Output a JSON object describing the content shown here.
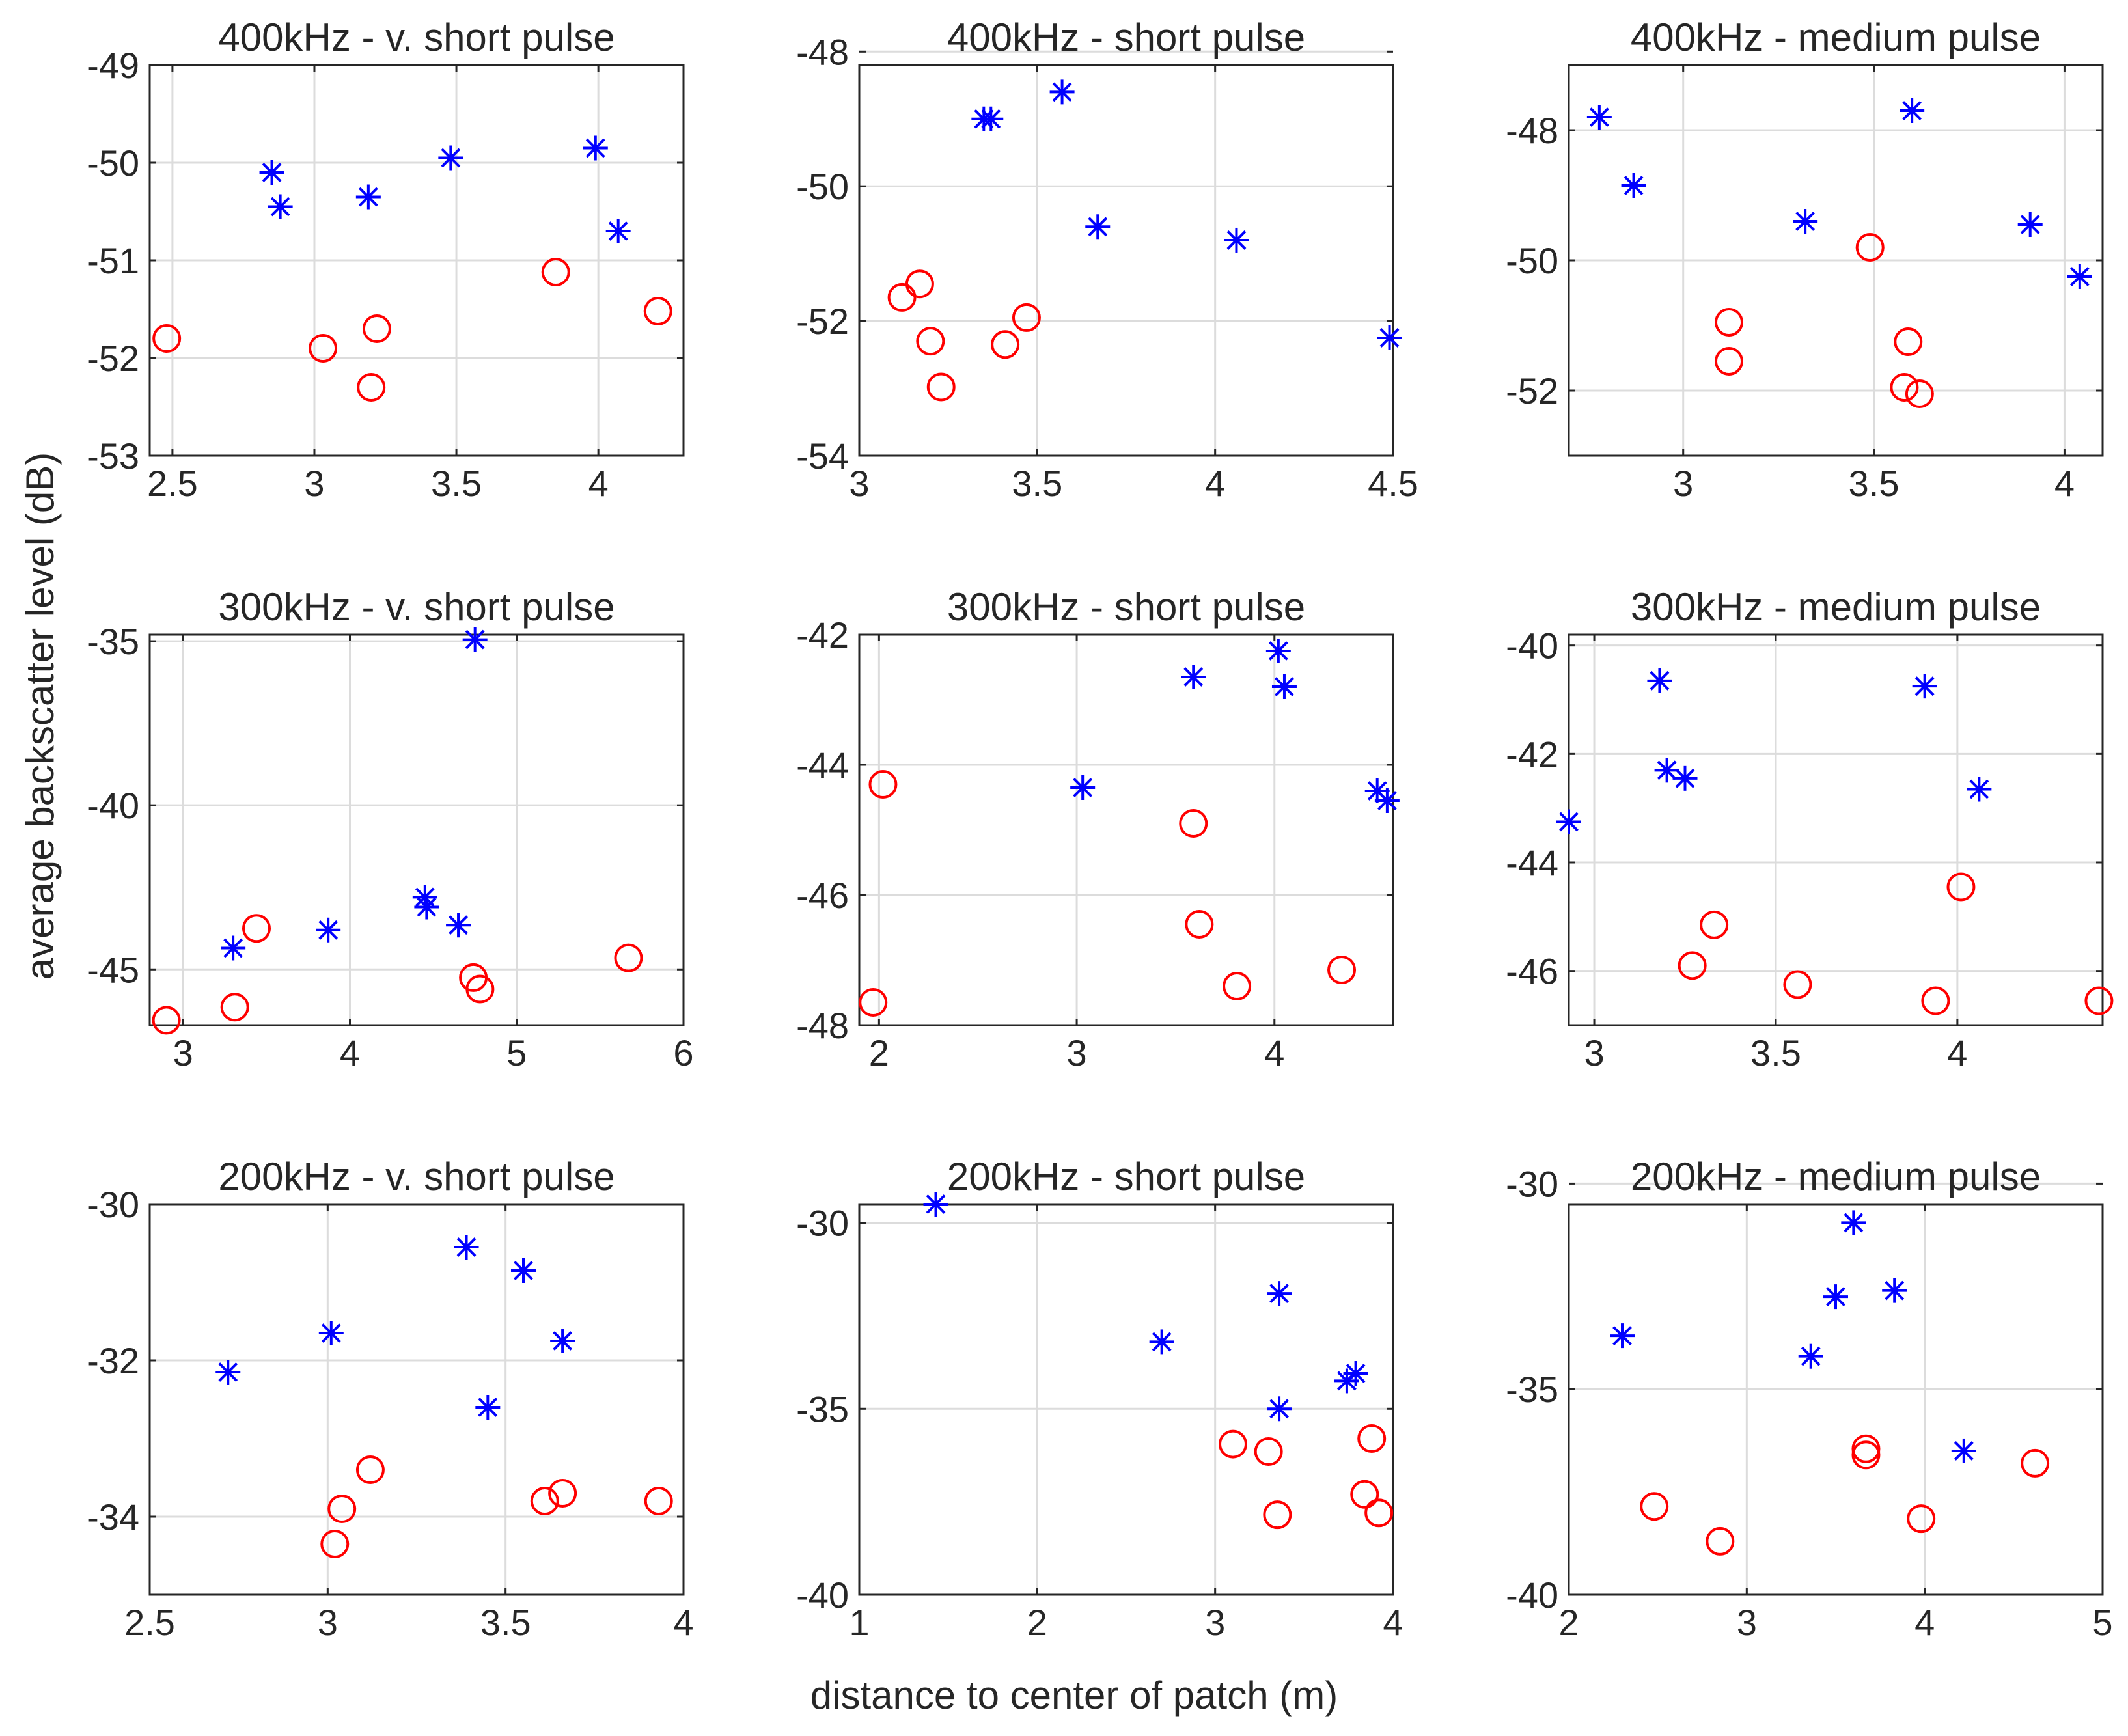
{
  "figure": {
    "xlabel": "distance to center of patch (m)",
    "ylabel": "average backscatter level (dB)"
  },
  "colors": {
    "series_a": "#0000ff",
    "series_b": "#ff0000",
    "text": "#262626",
    "grid": "#dcdcdc"
  },
  "chart_data": [
    {
      "type": "scatter",
      "title": "400kHz - v. short pulse",
      "xlim": [
        2.42,
        4.3
      ],
      "ylim": [
        -53,
        -49
      ],
      "xticks": [
        2.5,
        3,
        3.5,
        4
      ],
      "xtick_labels": [
        "2.5",
        "3",
        "3.5",
        "4"
      ],
      "yticks": [
        -53,
        -52,
        -51,
        -50,
        -49
      ],
      "ytick_labels": [
        "-53",
        "-52",
        "-51",
        "-50",
        "-49"
      ],
      "series": [
        {
          "name": "asterisk",
          "marker": "star",
          "points": [
            [
              2.85,
              -50.1
            ],
            [
              2.88,
              -50.45
            ],
            [
              3.19,
              -50.35
            ],
            [
              3.48,
              -49.95
            ],
            [
              3.99,
              -49.85
            ],
            [
              4.07,
              -50.7
            ]
          ]
        },
        {
          "name": "circle",
          "marker": "circle",
          "points": [
            [
              2.48,
              -51.8
            ],
            [
              3.03,
              -51.9
            ],
            [
              3.2,
              -52.3
            ],
            [
              3.22,
              -51.7
            ],
            [
              3.85,
              -51.12
            ],
            [
              4.21,
              -51.52
            ]
          ]
        }
      ]
    },
    {
      "type": "scatter",
      "title": "400kHz - short pulse",
      "xlim": [
        3.0,
        4.5
      ],
      "ylim": [
        -54,
        -48.2
      ],
      "xticks": [
        3,
        3.5,
        4,
        4.5
      ],
      "xtick_labels": [
        "3",
        "3.5",
        "4",
        "4.5"
      ],
      "yticks": [
        -54,
        -52,
        -50,
        -48
      ],
      "ytick_labels": [
        "-54",
        "-52",
        "-50",
        "-48"
      ],
      "series": [
        {
          "name": "asterisk",
          "marker": "star",
          "points": [
            [
              3.35,
              -49.0
            ],
            [
              3.37,
              -49.0
            ],
            [
              3.57,
              -48.6
            ],
            [
              3.67,
              -50.6
            ],
            [
              4.06,
              -50.8
            ],
            [
              4.49,
              -52.25
            ]
          ]
        },
        {
          "name": "circle",
          "marker": "circle",
          "points": [
            [
              3.12,
              -51.65
            ],
            [
              3.17,
              -51.45
            ],
            [
              3.2,
              -52.3
            ],
            [
              3.23,
              -52.98
            ],
            [
              3.41,
              -52.35
            ],
            [
              3.47,
              -51.95
            ]
          ]
        }
      ]
    },
    {
      "type": "scatter",
      "title": "400kHz - medium pulse",
      "xlim": [
        2.7,
        4.1
      ],
      "ylim": [
        -53,
        -47
      ],
      "xticks": [
        3,
        3.5,
        4
      ],
      "xtick_labels": [
        "3",
        "3.5",
        "4"
      ],
      "yticks": [
        -52,
        -50,
        -48
      ],
      "ytick_labels": [
        "-52",
        "-50",
        "-48"
      ],
      "series": [
        {
          "name": "asterisk",
          "marker": "star",
          "points": [
            [
              2.78,
              -47.8
            ],
            [
              2.87,
              -48.85
            ],
            [
              3.32,
              -49.4
            ],
            [
              3.6,
              -47.7
            ],
            [
              3.91,
              -49.45
            ],
            [
              4.04,
              -50.25
            ]
          ]
        },
        {
          "name": "circle",
          "marker": "circle",
          "points": [
            [
              3.12,
              -50.95
            ],
            [
              3.12,
              -51.55
            ],
            [
              3.49,
              -49.8
            ],
            [
              3.58,
              -51.95
            ],
            [
              3.59,
              -51.25
            ],
            [
              3.62,
              -52.05
            ]
          ]
        }
      ]
    },
    {
      "type": "scatter",
      "title": "300kHz - v. short pulse",
      "xlim": [
        2.8,
        6.0
      ],
      "ylim": [
        -46.7,
        -34.8
      ],
      "xticks": [
        3,
        4,
        5,
        6
      ],
      "xtick_labels": [
        "3",
        "4",
        "5",
        "6"
      ],
      "yticks": [
        -45,
        -40,
        -35
      ],
      "ytick_labels": [
        "-45",
        "-40",
        "-35"
      ],
      "series": [
        {
          "name": "asterisk",
          "marker": "star",
          "points": [
            [
              3.3,
              -44.35
            ],
            [
              3.87,
              -43.8
            ],
            [
              4.45,
              -42.8
            ],
            [
              4.46,
              -43.1
            ],
            [
              4.65,
              -43.65
            ],
            [
              4.75,
              -34.95
            ]
          ]
        },
        {
          "name": "circle",
          "marker": "circle",
          "points": [
            [
              2.9,
              -46.55
            ],
            [
              3.31,
              -46.15
            ],
            [
              3.44,
              -43.75
            ],
            [
              4.74,
              -45.25
            ],
            [
              4.78,
              -45.6
            ],
            [
              5.67,
              -44.65
            ]
          ]
        }
      ]
    },
    {
      "type": "scatter",
      "title": "300kHz - short pulse",
      "xlim": [
        1.9,
        4.6
      ],
      "ylim": [
        -48,
        -42
      ],
      "xticks": [
        2,
        3,
        4
      ],
      "xtick_labels": [
        "2",
        "3",
        "4"
      ],
      "yticks": [
        -48,
        -46,
        -44,
        -42
      ],
      "ytick_labels": [
        "-48",
        "-46",
        "-44",
        "-42"
      ],
      "series": [
        {
          "name": "asterisk",
          "marker": "star",
          "points": [
            [
              3.03,
              -44.35
            ],
            [
              3.59,
              -42.65
            ],
            [
              4.02,
              -42.25
            ],
            [
              4.05,
              -42.8
            ],
            [
              4.52,
              -44.4
            ],
            [
              4.57,
              -44.55
            ]
          ]
        },
        {
          "name": "circle",
          "marker": "circle",
          "points": [
            [
              1.97,
              -47.65
            ],
            [
              2.02,
              -44.3
            ],
            [
              3.59,
              -44.9
            ],
            [
              3.62,
              -46.45
            ],
            [
              3.81,
              -47.4
            ],
            [
              4.34,
              -47.15
            ]
          ]
        }
      ]
    },
    {
      "type": "scatter",
      "title": "300kHz - medium pulse",
      "xlim": [
        2.93,
        4.4
      ],
      "ylim": [
        -47,
        -39.8
      ],
      "xticks": [
        3,
        3.5,
        4
      ],
      "xtick_labels": [
        "3",
        "3.5",
        "4"
      ],
      "yticks": [
        -46,
        -44,
        -42,
        -40
      ],
      "ytick_labels": [
        "-46",
        "-44",
        "-42",
        "-40"
      ],
      "series": [
        {
          "name": "asterisk",
          "marker": "star",
          "points": [
            [
              2.93,
              -43.25
            ],
            [
              3.18,
              -40.65
            ],
            [
              3.2,
              -42.3
            ],
            [
              3.25,
              -42.45
            ],
            [
              3.91,
              -40.75
            ],
            [
              4.06,
              -42.65
            ]
          ]
        },
        {
          "name": "circle",
          "marker": "circle",
          "points": [
            [
              3.27,
              -45.9
            ],
            [
              3.33,
              -45.15
            ],
            [
              3.56,
              -46.25
            ],
            [
              3.94,
              -46.55
            ],
            [
              4.01,
              -44.45
            ],
            [
              4.39,
              -46.55
            ]
          ]
        }
      ]
    },
    {
      "type": "scatter",
      "title": "200kHz - v. short pulse",
      "xlim": [
        2.5,
        4.0
      ],
      "ylim": [
        -35,
        -30
      ],
      "xticks": [
        2.5,
        3,
        3.5,
        4
      ],
      "xtick_labels": [
        "2.5",
        "3",
        "3.5",
        "4"
      ],
      "yticks": [
        -34,
        -32,
        -30
      ],
      "ytick_labels": [
        "-34",
        "-32",
        "-30"
      ],
      "series": [
        {
          "name": "asterisk",
          "marker": "star",
          "points": [
            [
              2.72,
              -32.15
            ],
            [
              3.01,
              -31.65
            ],
            [
              3.39,
              -30.55
            ],
            [
              3.45,
              -32.6
            ],
            [
              3.55,
              -30.85
            ],
            [
              3.66,
              -31.75
            ]
          ]
        },
        {
          "name": "circle",
          "marker": "circle",
          "points": [
            [
              3.02,
              -34.35
            ],
            [
              3.04,
              -33.9
            ],
            [
              3.12,
              -33.4
            ],
            [
              3.61,
              -33.8
            ],
            [
              3.66,
              -33.7
            ],
            [
              3.93,
              -33.8
            ]
          ]
        }
      ]
    },
    {
      "type": "scatter",
      "title": "200kHz - short pulse",
      "xlim": [
        1.0,
        4.0
      ],
      "ylim": [
        -40,
        -29.5
      ],
      "xticks": [
        1,
        2,
        3,
        4
      ],
      "xtick_labels": [
        "1",
        "2",
        "3",
        "4"
      ],
      "yticks": [
        -40,
        -35,
        -30
      ],
      "ytick_labels": [
        "-40",
        "-35",
        "-30"
      ],
      "series": [
        {
          "name": "asterisk",
          "marker": "star",
          "points": [
            [
              1.43,
              -29.5
            ],
            [
              2.7,
              -33.2
            ],
            [
              3.36,
              -31.9
            ],
            [
              3.36,
              -35.0
            ],
            [
              3.74,
              -34.25
            ],
            [
              3.79,
              -34.05
            ]
          ]
        },
        {
          "name": "circle",
          "marker": "circle",
          "points": [
            [
              3.1,
              -35.95
            ],
            [
              3.3,
              -36.15
            ],
            [
              3.35,
              -37.85
            ],
            [
              3.84,
              -37.3
            ],
            [
              3.88,
              -35.8
            ],
            [
              3.92,
              -37.8
            ]
          ]
        }
      ]
    },
    {
      "type": "scatter",
      "title": "200kHz - medium pulse",
      "xlim": [
        2.0,
        5.0
      ],
      "ylim": [
        -40,
        -30.5
      ],
      "xticks": [
        2,
        3,
        4,
        5
      ],
      "xtick_labels": [
        "2",
        "3",
        "4",
        "5"
      ],
      "yticks": [
        -40,
        -35,
        -30
      ],
      "ytick_labels": [
        "-40",
        "-35",
        "-30"
      ],
      "series": [
        {
          "name": "asterisk",
          "marker": "star",
          "points": [
            [
              2.3,
              -33.7
            ],
            [
              3.36,
              -34.2
            ],
            [
              3.5,
              -32.75
            ],
            [
              3.6,
              -30.95
            ],
            [
              3.83,
              -32.6
            ],
            [
              4.22,
              -36.5
            ]
          ]
        },
        {
          "name": "circle",
          "marker": "circle",
          "points": [
            [
              2.48,
              -37.85
            ],
            [
              2.85,
              -38.7
            ],
            [
              3.67,
              -36.6
            ],
            [
              3.67,
              -36.45
            ],
            [
              3.98,
              -38.15
            ],
            [
              4.62,
              -36.8
            ]
          ]
        }
      ]
    }
  ]
}
